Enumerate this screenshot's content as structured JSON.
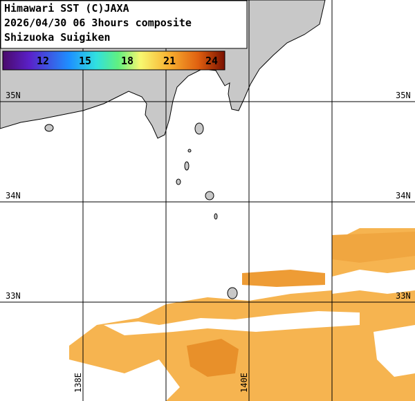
{
  "header": {
    "lines": [
      "Himawari SST (C)JAXA",
      "2026/04/30 06 3hours composite",
      "Shizuoka Suigiken"
    ]
  },
  "colorbar": {
    "ticks": [
      "12",
      "15",
      "18",
      "21",
      "24"
    ]
  },
  "grid": {
    "lat_labels": [
      "35N",
      "34N",
      "33N"
    ],
    "lon_labels": [
      "138E",
      "140E"
    ]
  }
}
